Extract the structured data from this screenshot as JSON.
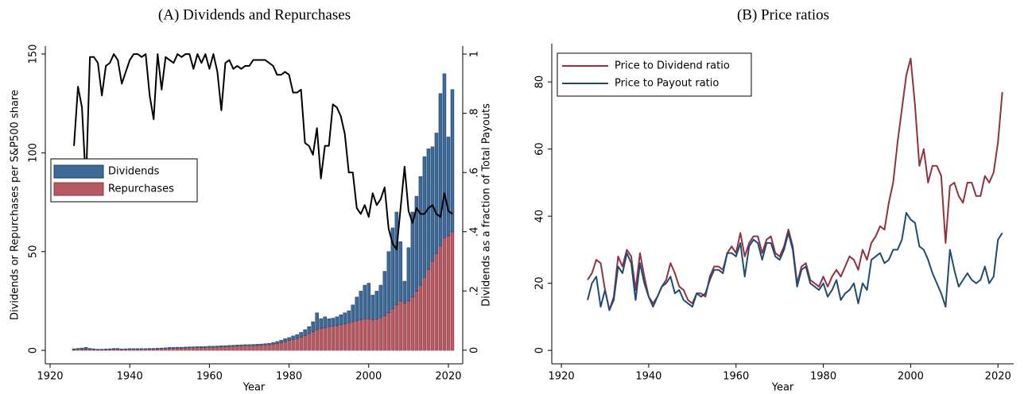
{
  "chart_data": [
    {
      "type": "bar-line",
      "title": "(A) Dividends and Repurchases",
      "xlabel": "Year",
      "ylabel": "Dividends or Repurchases per S&P500 share",
      "y2label": "Dividends as a fraction of Total Payouts",
      "x": [
        1926,
        1927,
        1928,
        1929,
        1930,
        1931,
        1932,
        1933,
        1934,
        1935,
        1936,
        1937,
        1938,
        1939,
        1940,
        1941,
        1942,
        1943,
        1944,
        1945,
        1946,
        1947,
        1948,
        1949,
        1950,
        1951,
        1952,
        1953,
        1954,
        1955,
        1956,
        1957,
        1958,
        1959,
        1960,
        1961,
        1962,
        1963,
        1964,
        1965,
        1966,
        1967,
        1968,
        1969,
        1970,
        1971,
        1972,
        1973,
        1974,
        1975,
        1976,
        1977,
        1978,
        1979,
        1980,
        1981,
        1982,
        1983,
        1984,
        1985,
        1986,
        1987,
        1988,
        1989,
        1990,
        1991,
        1992,
        1993,
        1994,
        1995,
        1996,
        1997,
        1998,
        1999,
        2000,
        2001,
        2002,
        2003,
        2004,
        2005,
        2006,
        2007,
        2008,
        2009,
        2010,
        2011,
        2012,
        2013,
        2014,
        2015,
        2016,
        2017,
        2018,
        2019,
        2020,
        2021
      ],
      "series": [
        {
          "name": "Dividends",
          "color": "#3d6a99",
          "edge": "#1d3a5f",
          "values": [
            0.4,
            0.5,
            0.7,
            0.9,
            0.5,
            0.4,
            0.3,
            0.3,
            0.3,
            0.4,
            0.5,
            0.5,
            0.3,
            0.4,
            0.4,
            0.4,
            0.4,
            0.4,
            0.4,
            0.4,
            0.4,
            0.4,
            0.4,
            0.4,
            0.5,
            0.5,
            0.5,
            0.5,
            0.5,
            0.5,
            0.5,
            0.5,
            0.5,
            0.5,
            0.5,
            0.5,
            0.5,
            0.5,
            0.5,
            0.5,
            0.5,
            0.5,
            0.5,
            0.5,
            0.5,
            0.6,
            0.6,
            0.6,
            0.6,
            0.7,
            0.8,
            1,
            1.2,
            1.5,
            1.5,
            1.8,
            2,
            2.5,
            3,
            3.5,
            5,
            8.5,
            5,
            5.5,
            4,
            4,
            4.5,
            5,
            5.5,
            6,
            8.5,
            12,
            14.5,
            17,
            18,
            12.5,
            14.2,
            16.5,
            22.5,
            31,
            41,
            47,
            30,
            11,
            27,
            43,
            48,
            55,
            61,
            61,
            58,
            61,
            77,
            83,
            50,
            72
          ]
        },
        {
          "name": "Repurchases",
          "color": "#b55a62",
          "edge": "#8a3540",
          "values": [
            0.4,
            0.5,
            0.5,
            0.6,
            0.5,
            0.4,
            0.3,
            0.3,
            0.4,
            0.4,
            0.5,
            0.5,
            0.4,
            0.4,
            0.5,
            0.5,
            0.5,
            0.5,
            0.5,
            0.6,
            0.6,
            0.7,
            0.8,
            0.9,
            1.0,
            1.0,
            1.1,
            1.1,
            1.2,
            1.3,
            1.3,
            1.4,
            1.4,
            1.5,
            1.6,
            1.6,
            1.7,
            1.8,
            1.9,
            2.0,
            2.1,
            2.2,
            2.3,
            2.4,
            2.4,
            2.4,
            2.5,
            2.6,
            2.8,
            2.9,
            3.2,
            3.5,
            3.9,
            4.4,
            5.0,
            5.5,
            6.0,
            6.6,
            7.5,
            8.5,
            9.5,
            10.5,
            11,
            11.5,
            12,
            12.3,
            12.5,
            13,
            13.5,
            14,
            14.5,
            15,
            15.5,
            16,
            16,
            15.5,
            15.8,
            16.5,
            17.5,
            19,
            21,
            23,
            25,
            24,
            25,
            27,
            30,
            33,
            37,
            41,
            45,
            49,
            53,
            57,
            58,
            60
          ]
        }
      ],
      "line": {
        "color": "#000000",
        "axis": "y2",
        "values": [
          0.69,
          0.89,
          0.82,
          0.56,
          0.99,
          0.99,
          0.97,
          0.86,
          0.96,
          0.97,
          1.0,
          0.98,
          0.9,
          0.94,
          0.98,
          1.0,
          1.0,
          0.99,
          1.0,
          0.86,
          0.78,
          1.0,
          0.88,
          0.99,
          0.98,
          0.97,
          1.0,
          0.99,
          1.0,
          1.0,
          0.95,
          1.0,
          0.97,
          1.0,
          0.95,
          1.0,
          0.94,
          0.81,
          0.97,
          0.98,
          0.95,
          0.96,
          0.95,
          0.96,
          0.96,
          0.98,
          0.98,
          0.98,
          0.98,
          0.97,
          0.96,
          0.93,
          0.93,
          0.94,
          0.93,
          0.87,
          0.87,
          0.88,
          0.7,
          0.69,
          0.66,
          0.75,
          0.58,
          0.69,
          0.69,
          0.83,
          0.82,
          0.79,
          0.73,
          0.6,
          0.6,
          0.48,
          0.46,
          0.49,
          0.45,
          0.53,
          0.49,
          0.51,
          0.55,
          0.41,
          0.36,
          0.34,
          0.48,
          0.62,
          0.47,
          0.43,
          0.48,
          0.46,
          0.46,
          0.48,
          0.49,
          0.46,
          0.45,
          0.53,
          0.47,
          0.46
        ]
      },
      "xlim": [
        1918.8,
        2023.6
      ],
      "xticks": [
        1920,
        1940,
        1960,
        1980,
        2000,
        2020
      ],
      "ylim": [
        -6.8,
        154
      ],
      "yticks": [
        0,
        50,
        100,
        150
      ],
      "y2lim": [
        -0.046,
        1.027
      ],
      "y2ticks": [
        0,
        {
          "value": 0.2,
          "label": ".2"
        },
        {
          "value": 0.4,
          "label": ".4"
        },
        {
          "value": 0.6,
          "label": ".6"
        },
        {
          "value": 0.8,
          "label": ".8"
        },
        1
      ],
      "legend": "center-left"
    },
    {
      "type": "line",
      "title": "(B) Price ratios",
      "xlabel": "Year",
      "x": [
        1926,
        1927,
        1928,
        1929,
        1930,
        1931,
        1932,
        1933,
        1934,
        1935,
        1936,
        1937,
        1938,
        1939,
        1940,
        1941,
        1942,
        1943,
        1944,
        1945,
        1946,
        1947,
        1948,
        1949,
        1950,
        1951,
        1952,
        1953,
        1954,
        1955,
        1956,
        1957,
        1958,
        1959,
        1960,
        1961,
        1962,
        1963,
        1964,
        1965,
        1966,
        1967,
        1968,
        1969,
        1970,
        1971,
        1972,
        1973,
        1974,
        1975,
        1976,
        1977,
        1978,
        1979,
        1980,
        1981,
        1982,
        1983,
        1984,
        1985,
        1986,
        1987,
        1988,
        1989,
        1990,
        1991,
        1992,
        1993,
        1994,
        1995,
        1996,
        1997,
        1998,
        1999,
        2000,
        2001,
        2002,
        2003,
        2004,
        2005,
        2006,
        2007,
        2008,
        2009,
        2010,
        2011,
        2012,
        2013,
        2014,
        2015,
        2016,
        2017,
        2018,
        2019,
        2020,
        2021
      ],
      "series": [
        {
          "name": "Price to Dividend ratio",
          "color": "#93323d",
          "values": [
            21,
            23,
            27,
            26,
            18,
            12,
            16,
            28,
            25,
            30,
            28,
            18,
            29,
            22,
            16,
            14,
            16,
            19,
            21,
            26,
            23,
            19,
            18,
            15,
            14,
            17,
            17,
            16,
            22,
            25,
            25,
            24,
            29,
            31,
            29,
            35,
            28,
            32,
            34,
            34,
            29,
            33,
            34,
            29,
            28,
            31,
            36,
            31,
            20,
            25,
            26,
            21,
            20,
            19,
            22,
            19,
            22,
            24,
            22,
            25,
            28,
            27,
            24,
            30,
            27,
            32,
            34,
            37,
            36,
            44,
            50,
            62,
            72,
            82,
            87,
            73,
            55,
            60,
            50,
            55,
            55,
            52,
            32,
            49,
            50,
            46,
            44,
            50,
            50,
            46,
            46,
            52,
            50,
            53,
            62,
            77
          ]
        },
        {
          "name": "Price to Payout ratio",
          "color": "#1f4b75",
          "values": [
            15,
            20,
            22,
            13,
            18,
            12,
            15,
            25,
            23,
            29,
            26,
            15,
            26,
            20,
            16,
            13,
            16,
            19,
            20,
            22,
            17,
            18,
            15,
            14,
            13,
            17,
            16,
            17,
            21,
            24,
            24,
            23,
            29,
            29,
            28,
            32,
            22,
            31,
            33,
            32,
            27,
            32,
            32,
            28,
            27,
            30,
            35,
            30,
            19,
            24,
            25,
            20,
            19,
            18,
            20,
            16,
            18,
            21,
            15,
            17,
            18,
            20,
            14,
            20,
            18,
            27,
            28,
            29,
            26,
            27,
            30,
            30,
            33,
            41,
            39,
            38,
            31,
            30,
            27,
            23,
            20,
            17,
            13,
            30,
            24,
            19,
            21,
            23,
            21,
            20,
            21,
            25,
            20,
            22,
            33,
            35
          ]
        }
      ],
      "xlim": [
        1917.8,
        2023.6
      ],
      "xticks": [
        1920,
        1940,
        1960,
        1980,
        2000,
        2020
      ],
      "ylim": [
        -4,
        91.4
      ],
      "yticks": [
        0,
        20,
        40,
        60,
        80
      ],
      "legend": "top-left"
    }
  ]
}
